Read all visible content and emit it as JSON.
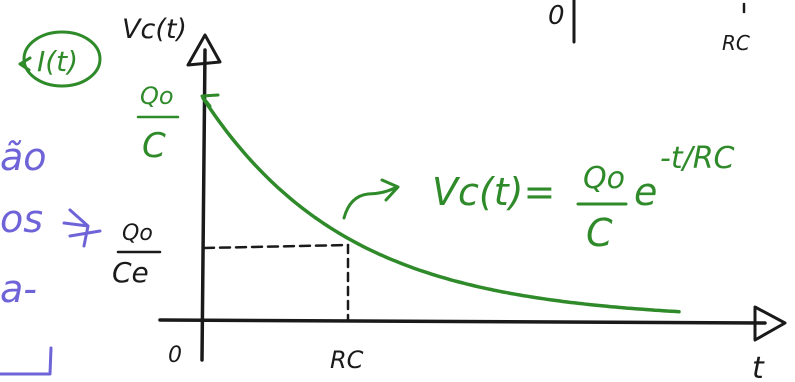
{
  "colors": {
    "ink": "#1a1a1a",
    "curve": "#2f8a2a",
    "note": "#6f63d8"
  },
  "axes": {
    "y_label": "Vc(t)",
    "x_label": "t",
    "origin_label": "0",
    "x_tick_label": "RC"
  },
  "y_ticks": {
    "top_numerator": "Qo",
    "top_denominator": "C",
    "mid_numerator": "Qo",
    "mid_denominator": "Ce"
  },
  "equation": {
    "lhs": "Vc(t)=",
    "numerator": "Qo",
    "denominator": "C",
    "base": "e",
    "exponent": "-t/RC"
  },
  "corner_fragments": {
    "top_mid": "0",
    "top_right": "RC"
  },
  "left_notes": {
    "circled": "I(t)",
    "line1": "ão",
    "line2": "os",
    "line3": "a-"
  }
}
